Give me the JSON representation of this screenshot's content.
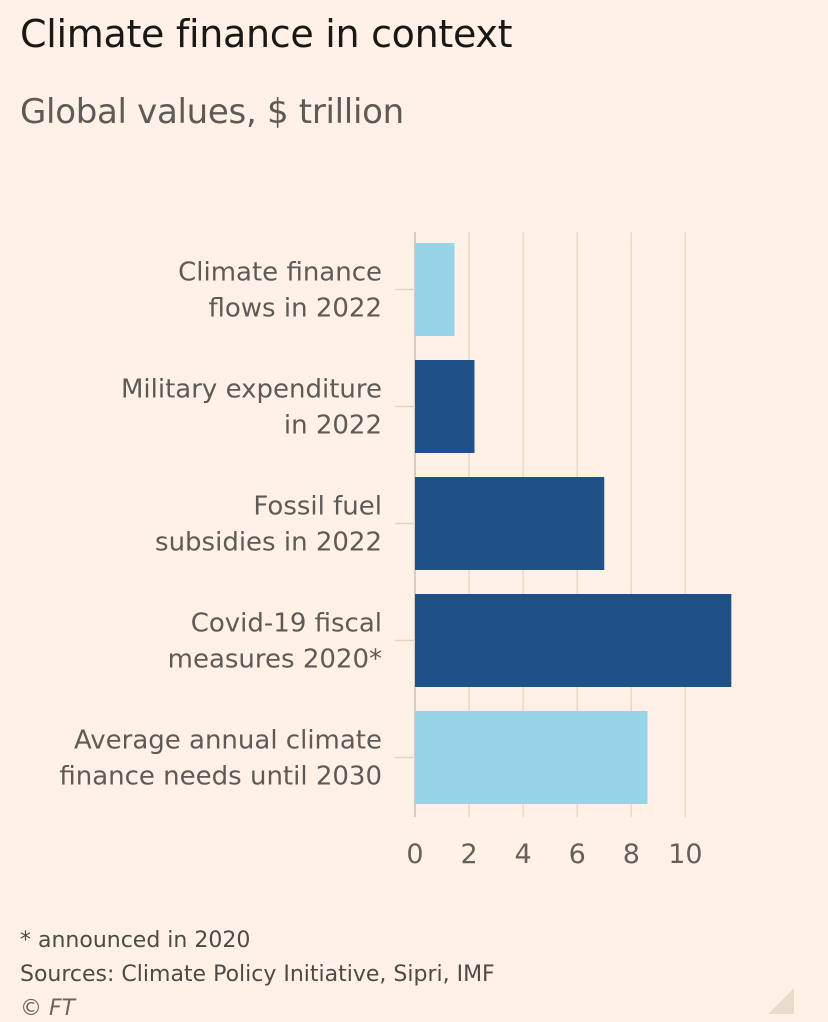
{
  "header": {
    "title": "Climate finance in context",
    "subtitle": "Global values, $ trillion"
  },
  "chart_data": {
    "type": "bar",
    "orientation": "horizontal",
    "title": "Climate finance in context",
    "subtitle": "Global values, $ trillion",
    "categories": [
      [
        "Climate finance",
        "flows in 2022"
      ],
      [
        "Military expenditure",
        "in 2022"
      ],
      [
        "Fossil fuel",
        "subsidies in 2022"
      ],
      [
        "Covid-19 fiscal",
        "measures 2020*"
      ],
      [
        "Average annual climate",
        "finance needs until 2030"
      ]
    ],
    "values": [
      1.46,
      2.2,
      7.0,
      11.7,
      8.6
    ],
    "colors": [
      "#96d4e8",
      "#1f5088",
      "#1f5088",
      "#1f5088",
      "#96d4e8"
    ],
    "xticks": [
      0,
      2,
      4,
      6,
      8,
      10
    ],
    "xlim": [
      0,
      13.5
    ],
    "xlabel": "",
    "ylabel": "",
    "grid": true
  },
  "footer": {
    "footnote": "* announced in 2020",
    "sources": "Sources: Climate Policy Initiative, Sipri, IMF",
    "copyright": "© FT"
  },
  "icons": {
    "corner": "resize-corner-icon"
  }
}
